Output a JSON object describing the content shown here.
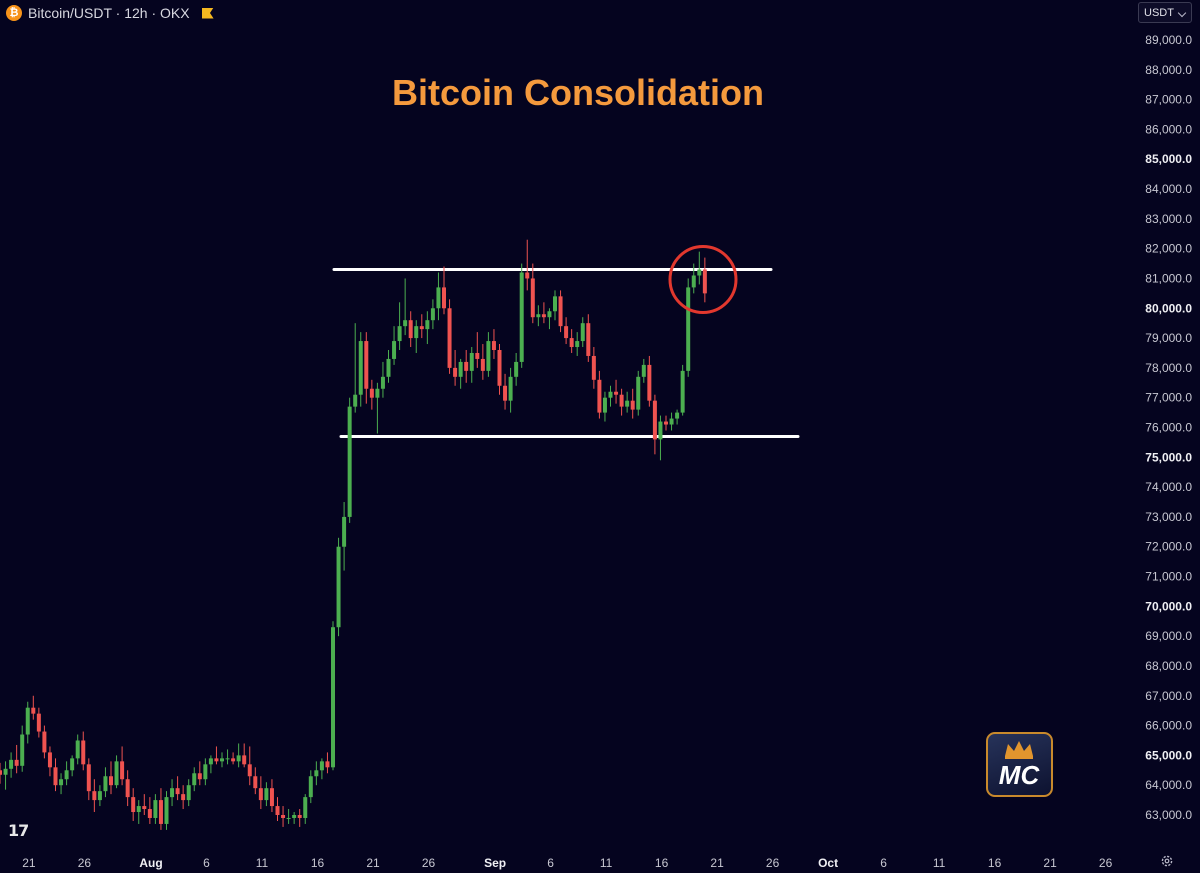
{
  "header": {
    "symbol_title": "Bitcoin/USDT · 12h · OKX",
    "coin_icon_glyph": "₿",
    "coin_icon": "bitcoin-icon",
    "flag_icon": "flag-icon"
  },
  "currency_select": {
    "value": "USDT"
  },
  "logos": {
    "tradingview": "TV-logo-icon",
    "brand": "MC-crown-logo",
    "brand_text": "MC"
  },
  "settings_icon": "gear-icon",
  "colors": {
    "background": "#05041f",
    "bullish": "#4caf50",
    "bearish": "#ef5350",
    "title": "#f59a3d",
    "range_lines": "#ffffff",
    "highlight_circle": "#e2382e",
    "brand_border": "#c98a2c"
  },
  "chart_data": {
    "type": "candlestick",
    "title": "Bitcoin Consolidation",
    "interval": "12h",
    "ylim": [
      62500,
      89600
    ],
    "y_ticks": [
      89000,
      88000,
      87000,
      86000,
      85000,
      84000,
      83000,
      82000,
      81000,
      80000,
      79000,
      78000,
      77000,
      76000,
      75000,
      74000,
      73000,
      72000,
      71000,
      70000,
      69000,
      68000,
      67000,
      66000,
      65000,
      64000,
      63000
    ],
    "y_tick_labels": [
      "89,000.0",
      "88,000.0",
      "87,000.0",
      "86,000.0",
      "85,000.0",
      "84,000.0",
      "83,000.0",
      "82,000.0",
      "81,000.0",
      "80,000.0",
      "79,000.0",
      "78,000.0",
      "77,000.0",
      "76,000.0",
      "75,000.0",
      "74,000.0",
      "73,000.0",
      "72,000.0",
      "71,000.0",
      "70,000.0",
      "69,000.0",
      "68,000.0",
      "67,000.0",
      "66,000.0",
      "65,000.0",
      "64,000.0",
      "63,000.0"
    ],
    "y_bold_labels": [
      "85,000.0",
      "80,000.0",
      "75,000.0",
      "70,000.0",
      "65,000.0"
    ],
    "x_ticks": [
      {
        "label": "21",
        "day": -11
      },
      {
        "label": "26",
        "day": -6
      },
      {
        "label": "Aug",
        "day": 0
      },
      {
        "label": "6",
        "day": 5
      },
      {
        "label": "11",
        "day": 10
      },
      {
        "label": "16",
        "day": 15
      },
      {
        "label": "21",
        "day": 20
      },
      {
        "label": "26",
        "day": 25
      },
      {
        "label": "Sep",
        "day": 31
      },
      {
        "label": "6",
        "day": 36
      },
      {
        "label": "11",
        "day": 41
      },
      {
        "label": "16",
        "day": 46
      },
      {
        "label": "21",
        "day": 51
      },
      {
        "label": "26",
        "day": 56
      },
      {
        "label": "Oct",
        "day": 61
      },
      {
        "label": "6",
        "day": 66
      },
      {
        "label": "11",
        "day": 71
      },
      {
        "label": "16",
        "day": 76
      },
      {
        "label": "21",
        "day": 81
      },
      {
        "label": "26",
        "day": 86
      }
    ],
    "x_bold_labels": [
      "Aug",
      "Sep",
      "Oct"
    ],
    "range_resistance": 81300,
    "range_support": 75700,
    "highlight": {
      "day": 50,
      "price": 81000
    },
    "candles": [
      {
        "o": 64500,
        "h": 64750,
        "l": 64050,
        "c": 64350
      },
      {
        "o": 64350,
        "h": 64800,
        "l": 63850,
        "c": 64550
      },
      {
        "o": 64550,
        "h": 65100,
        "l": 64250,
        "c": 64850
      },
      {
        "o": 64850,
        "h": 65350,
        "l": 64400,
        "c": 64650
      },
      {
        "o": 64650,
        "h": 66000,
        "l": 64450,
        "c": 65700
      },
      {
        "o": 65700,
        "h": 66800,
        "l": 65400,
        "c": 66600
      },
      {
        "o": 66600,
        "h": 67000,
        "l": 66200,
        "c": 66400
      },
      {
        "o": 66400,
        "h": 66600,
        "l": 65600,
        "c": 65800
      },
      {
        "o": 65800,
        "h": 66000,
        "l": 64900,
        "c": 65100
      },
      {
        "o": 65100,
        "h": 65300,
        "l": 64300,
        "c": 64600
      },
      {
        "o": 64600,
        "h": 64900,
        "l": 63800,
        "c": 64000
      },
      {
        "o": 64000,
        "h": 64400,
        "l": 63700,
        "c": 64200
      },
      {
        "o": 64200,
        "h": 64800,
        "l": 64000,
        "c": 64500
      },
      {
        "o": 64500,
        "h": 65000,
        "l": 64300,
        "c": 64900
      },
      {
        "o": 64900,
        "h": 65700,
        "l": 64700,
        "c": 65500
      },
      {
        "o": 65500,
        "h": 65800,
        "l": 64500,
        "c": 64700
      },
      {
        "o": 64700,
        "h": 64900,
        "l": 63500,
        "c": 63800
      },
      {
        "o": 63800,
        "h": 64200,
        "l": 63100,
        "c": 63500
      },
      {
        "o": 63500,
        "h": 64000,
        "l": 63300,
        "c": 63800
      },
      {
        "o": 63800,
        "h": 64600,
        "l": 63600,
        "c": 64300
      },
      {
        "o": 64300,
        "h": 64800,
        "l": 63700,
        "c": 64000
      },
      {
        "o": 64000,
        "h": 65000,
        "l": 63900,
        "c": 64800
      },
      {
        "o": 64800,
        "h": 65300,
        "l": 64000,
        "c": 64200
      },
      {
        "o": 64200,
        "h": 64500,
        "l": 63300,
        "c": 63600
      },
      {
        "o": 63600,
        "h": 63900,
        "l": 62800,
        "c": 63100
      },
      {
        "o": 63100,
        "h": 63500,
        "l": 62700,
        "c": 63300
      },
      {
        "o": 63300,
        "h": 63700,
        "l": 63000,
        "c": 63200
      },
      {
        "o": 63200,
        "h": 63600,
        "l": 62700,
        "c": 62900
      },
      {
        "o": 62900,
        "h": 63700,
        "l": 62700,
        "c": 63500
      },
      {
        "o": 63500,
        "h": 63900,
        "l": 62500,
        "c": 62700
      },
      {
        "o": 62700,
        "h": 63800,
        "l": 62500,
        "c": 63600
      },
      {
        "o": 63600,
        "h": 64200,
        "l": 63300,
        "c": 63900
      },
      {
        "o": 63900,
        "h": 64300,
        "l": 63500,
        "c": 63700
      },
      {
        "o": 63700,
        "h": 64000,
        "l": 63200,
        "c": 63500
      },
      {
        "o": 63500,
        "h": 64200,
        "l": 63300,
        "c": 64000
      },
      {
        "o": 64000,
        "h": 64600,
        "l": 63800,
        "c": 64400
      },
      {
        "o": 64400,
        "h": 64800,
        "l": 64000,
        "c": 64200
      },
      {
        "o": 64200,
        "h": 64900,
        "l": 64000,
        "c": 64700
      },
      {
        "o": 64700,
        "h": 65000,
        "l": 64400,
        "c": 64900
      },
      {
        "o": 64900,
        "h": 65300,
        "l": 64700,
        "c": 64800
      },
      {
        "o": 64800,
        "h": 65100,
        "l": 64600,
        "c": 64900
      },
      {
        "o": 64900,
        "h": 65200,
        "l": 64700,
        "c": 64900
      },
      {
        "o": 64900,
        "h": 65100,
        "l": 64700,
        "c": 64800
      },
      {
        "o": 64800,
        "h": 65400,
        "l": 64600,
        "c": 65000
      },
      {
        "o": 65000,
        "h": 65400,
        "l": 64600,
        "c": 64700
      },
      {
        "o": 64700,
        "h": 65300,
        "l": 64000,
        "c": 64300
      },
      {
        "o": 64300,
        "h": 64600,
        "l": 63700,
        "c": 63900
      },
      {
        "o": 63900,
        "h": 64300,
        "l": 63200,
        "c": 63500
      },
      {
        "o": 63500,
        "h": 64100,
        "l": 63300,
        "c": 63900
      },
      {
        "o": 63900,
        "h": 64200,
        "l": 63100,
        "c": 63300
      },
      {
        "o": 63300,
        "h": 63600,
        "l": 62800,
        "c": 63000
      },
      {
        "o": 63000,
        "h": 63300,
        "l": 62600,
        "c": 62900
      },
      {
        "o": 62900,
        "h": 63200,
        "l": 62700,
        "c": 62900
      },
      {
        "o": 62900,
        "h": 63100,
        "l": 62700,
        "c": 63000
      },
      {
        "o": 63000,
        "h": 63200,
        "l": 62600,
        "c": 62900
      },
      {
        "o": 62900,
        "h": 63700,
        "l": 62700,
        "c": 63600
      },
      {
        "o": 63600,
        "h": 64500,
        "l": 63400,
        "c": 64300
      },
      {
        "o": 64300,
        "h": 64800,
        "l": 64000,
        "c": 64500
      },
      {
        "o": 64500,
        "h": 64900,
        "l": 64200,
        "c": 64800
      },
      {
        "o": 64800,
        "h": 65100,
        "l": 64400,
        "c": 64600
      },
      {
        "o": 64600,
        "h": 69500,
        "l": 64500,
        "c": 69300
      },
      {
        "o": 69300,
        "h": 72300,
        "l": 69000,
        "c": 72000
      },
      {
        "o": 72000,
        "h": 73500,
        "l": 71200,
        "c": 73000
      },
      {
        "o": 73000,
        "h": 77000,
        "l": 72800,
        "c": 76700
      },
      {
        "o": 76700,
        "h": 79500,
        "l": 76500,
        "c": 77100
      },
      {
        "o": 77100,
        "h": 79200,
        "l": 76700,
        "c": 78900
      },
      {
        "o": 78900,
        "h": 79200,
        "l": 76800,
        "c": 77300
      },
      {
        "o": 77300,
        "h": 77600,
        "l": 76600,
        "c": 77000
      },
      {
        "o": 77000,
        "h": 77500,
        "l": 75800,
        "c": 77300
      },
      {
        "o": 77300,
        "h": 78200,
        "l": 77000,
        "c": 77700
      },
      {
        "o": 77700,
        "h": 78600,
        "l": 77500,
        "c": 78300
      },
      {
        "o": 78300,
        "h": 79400,
        "l": 78100,
        "c": 78900
      },
      {
        "o": 78900,
        "h": 80200,
        "l": 78600,
        "c": 79400
      },
      {
        "o": 79400,
        "h": 81000,
        "l": 79100,
        "c": 79600
      },
      {
        "o": 79600,
        "h": 79900,
        "l": 78700,
        "c": 79000
      },
      {
        "o": 79000,
        "h": 79600,
        "l": 78500,
        "c": 79400
      },
      {
        "o": 79400,
        "h": 79800,
        "l": 79000,
        "c": 79300
      },
      {
        "o": 79300,
        "h": 79900,
        "l": 78800,
        "c": 79600
      },
      {
        "o": 79600,
        "h": 80300,
        "l": 79300,
        "c": 80000
      },
      {
        "o": 80000,
        "h": 81200,
        "l": 79600,
        "c": 80700
      },
      {
        "o": 80700,
        "h": 81400,
        "l": 79800,
        "c": 80000
      },
      {
        "o": 80000,
        "h": 80300,
        "l": 77800,
        "c": 78000
      },
      {
        "o": 78000,
        "h": 78600,
        "l": 77400,
        "c": 77700
      },
      {
        "o": 77700,
        "h": 78300,
        "l": 77300,
        "c": 78200
      },
      {
        "o": 78200,
        "h": 78600,
        "l": 77500,
        "c": 77900
      },
      {
        "o": 77900,
        "h": 78700,
        "l": 77500,
        "c": 78500
      },
      {
        "o": 78500,
        "h": 79200,
        "l": 78000,
        "c": 78300
      },
      {
        "o": 78300,
        "h": 78800,
        "l": 77600,
        "c": 77900
      },
      {
        "o": 77900,
        "h": 79200,
        "l": 77700,
        "c": 78900
      },
      {
        "o": 78900,
        "h": 79300,
        "l": 78300,
        "c": 78600
      },
      {
        "o": 78600,
        "h": 78800,
        "l": 77100,
        "c": 77400
      },
      {
        "o": 77400,
        "h": 77800,
        "l": 76600,
        "c": 76900
      },
      {
        "o": 76900,
        "h": 78000,
        "l": 76500,
        "c": 77700
      },
      {
        "o": 77700,
        "h": 78500,
        "l": 77400,
        "c": 78200
      },
      {
        "o": 78200,
        "h": 81500,
        "l": 78000,
        "c": 81200
      },
      {
        "o": 81200,
        "h": 82300,
        "l": 80600,
        "c": 81000
      },
      {
        "o": 81000,
        "h": 81500,
        "l": 79500,
        "c": 79700
      },
      {
        "o": 79700,
        "h": 80100,
        "l": 79400,
        "c": 79800
      },
      {
        "o": 79800,
        "h": 80200,
        "l": 79500,
        "c": 79700
      },
      {
        "o": 79700,
        "h": 80000,
        "l": 79300,
        "c": 79900
      },
      {
        "o": 79900,
        "h": 80600,
        "l": 79600,
        "c": 80400
      },
      {
        "o": 80400,
        "h": 80600,
        "l": 79200,
        "c": 79400
      },
      {
        "o": 79400,
        "h": 79700,
        "l": 78800,
        "c": 79000
      },
      {
        "o": 79000,
        "h": 79300,
        "l": 78500,
        "c": 78700
      },
      {
        "o": 78700,
        "h": 79200,
        "l": 78400,
        "c": 78900
      },
      {
        "o": 78900,
        "h": 79700,
        "l": 78700,
        "c": 79500
      },
      {
        "o": 79500,
        "h": 79800,
        "l": 78200,
        "c": 78400
      },
      {
        "o": 78400,
        "h": 78700,
        "l": 77300,
        "c": 77600
      },
      {
        "o": 77600,
        "h": 77900,
        "l": 76300,
        "c": 76500
      },
      {
        "o": 76500,
        "h": 77200,
        "l": 76200,
        "c": 77000
      },
      {
        "o": 77000,
        "h": 77400,
        "l": 76700,
        "c": 77200
      },
      {
        "o": 77200,
        "h": 77600,
        "l": 76800,
        "c": 77100
      },
      {
        "o": 77100,
        "h": 77300,
        "l": 76400,
        "c": 76700
      },
      {
        "o": 76700,
        "h": 77200,
        "l": 76500,
        "c": 76900
      },
      {
        "o": 76900,
        "h": 77300,
        "l": 76300,
        "c": 76600
      },
      {
        "o": 76600,
        "h": 77900,
        "l": 76400,
        "c": 77700
      },
      {
        "o": 77700,
        "h": 78300,
        "l": 77500,
        "c": 78100
      },
      {
        "o": 78100,
        "h": 78400,
        "l": 76700,
        "c": 76900
      },
      {
        "o": 76900,
        "h": 77100,
        "l": 75100,
        "c": 75600
      },
      {
        "o": 75600,
        "h": 76400,
        "l": 74900,
        "c": 76200
      },
      {
        "o": 76200,
        "h": 76400,
        "l": 75900,
        "c": 76100
      },
      {
        "o": 76100,
        "h": 76500,
        "l": 75900,
        "c": 76300
      },
      {
        "o": 76300,
        "h": 76600,
        "l": 76100,
        "c": 76500
      },
      {
        "o": 76500,
        "h": 78100,
        "l": 76400,
        "c": 77900
      },
      {
        "o": 77900,
        "h": 81000,
        "l": 77700,
        "c": 80700
      },
      {
        "o": 80700,
        "h": 81500,
        "l": 80500,
        "c": 81100
      },
      {
        "o": 81100,
        "h": 81900,
        "l": 80800,
        "c": 81300
      },
      {
        "o": 81300,
        "h": 81700,
        "l": 80200,
        "c": 80500
      }
    ]
  }
}
